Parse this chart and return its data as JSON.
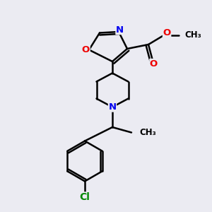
{
  "bg_color": "#ebebf2",
  "bond_color": "#000000",
  "bond_width": 1.8,
  "atom_colors": {
    "N": "#0000ee",
    "O": "#ee0000",
    "Cl": "#008800",
    "C": "#000000"
  },
  "font_size": 9.5,
  "figsize": [
    3.0,
    3.0
  ],
  "dpi": 100
}
